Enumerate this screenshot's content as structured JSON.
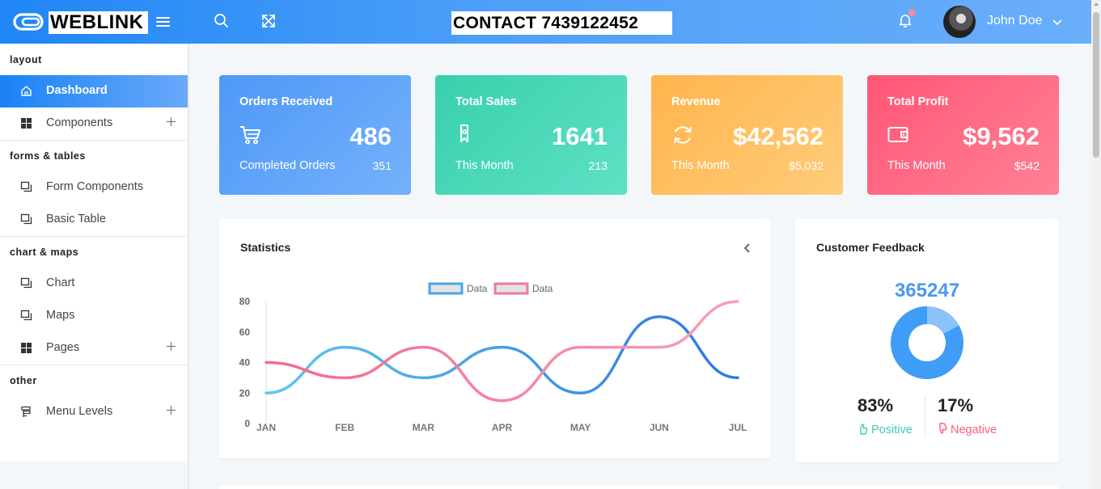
{
  "header": {
    "brand": "WEBLINK",
    "contact": "CONTACT 7439122452",
    "user_name": "John Doe"
  },
  "sidebar": {
    "sections": [
      {
        "caption": "layout",
        "items": [
          {
            "label": "Dashboard",
            "icon": "home-icon",
            "active": true,
            "expandable": false
          },
          {
            "label": "Components",
            "icon": "grid-icon",
            "active": false,
            "expandable": true
          }
        ]
      },
      {
        "caption": "forms & tables",
        "items": [
          {
            "label": "Form Components",
            "icon": "window-icon",
            "expandable": false
          },
          {
            "label": "Basic Table",
            "icon": "window-icon",
            "expandable": false
          }
        ]
      },
      {
        "caption": "chart & maps",
        "items": [
          {
            "label": "Chart",
            "icon": "window-icon",
            "expandable": false
          },
          {
            "label": "Maps",
            "icon": "window-icon",
            "expandable": false
          },
          {
            "label": "Pages",
            "icon": "grid-icon",
            "expandable": true
          }
        ]
      },
      {
        "caption": "other",
        "items": [
          {
            "label": "Menu Levels",
            "icon": "menu-levels-icon",
            "expandable": true
          }
        ]
      }
    ]
  },
  "cards": [
    {
      "title": "Orders Received",
      "value": "486",
      "sub_label": "Completed Orders",
      "sub_value": "351",
      "icon": "cart-icon",
      "color": "#5a9ff8"
    },
    {
      "title": "Total Sales",
      "value": "1641",
      "sub_label": "This Month",
      "sub_value": "213",
      "icon": "tag-icon",
      "color": "#3fd5b3"
    },
    {
      "title": "Revenue",
      "value": "$42,562",
      "sub_label": "This Month",
      "sub_value": "$5,032",
      "icon": "refresh-icon",
      "color": "#ffbd5a"
    },
    {
      "title": "Total Profit",
      "value": "$9,562",
      "sub_label": "This Month",
      "sub_value": "$542",
      "icon": "wallet-icon",
      "color": "#ff627e"
    }
  ],
  "statistics": {
    "title": "Statistics"
  },
  "chart_data": {
    "type": "line",
    "title": "Statistics",
    "categories": [
      "JAN",
      "FEB",
      "MAR",
      "APR",
      "MAY",
      "JUN",
      "JUL"
    ],
    "ylim": [
      0,
      80
    ],
    "yticks": [
      0,
      20,
      40,
      60,
      80
    ],
    "series": [
      {
        "name": "Data",
        "values": [
          20,
          50,
          30,
          50,
          20,
          70,
          30
        ],
        "color_start": "#5fc6ee",
        "color_end": "#2f77e0"
      },
      {
        "name": "Data",
        "values": [
          40,
          30,
          50,
          15,
          50,
          50,
          80
        ],
        "color_start": "#f4698a",
        "color_end": "#f7a0b5"
      }
    ],
    "legend": "top-center",
    "curve": "smooth"
  },
  "feedback": {
    "title": "Customer Feedback",
    "total": "365247",
    "positive_pct": "83%",
    "negative_pct": "17%",
    "positive_label": "Positive",
    "negative_label": "Negative",
    "positive_fraction": 0.83,
    "negative_fraction": 0.17,
    "positive_color": "#3f9cf7",
    "negative_color": "#8cc2fa"
  }
}
